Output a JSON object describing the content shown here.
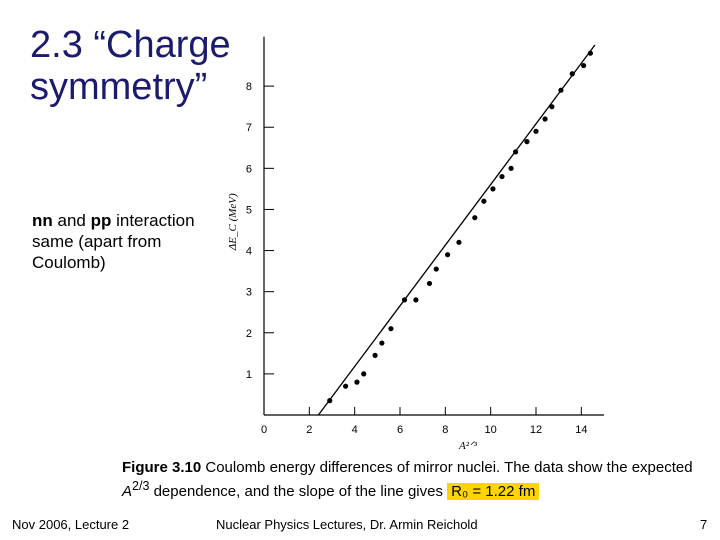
{
  "slide": {
    "title_line1": "2.3 “Charge",
    "title_line2": "symmetry”",
    "bullet_bold1": "nn",
    "bullet_and": " and ",
    "bullet_bold2": "pp",
    "bullet_rest": " interaction same (apart from Coulomb)"
  },
  "caption": {
    "fig_label": "Figure 3.10",
    "text1": " Coulomb energy differences of mirror nuclei. The data show the expected ",
    "a_exp": "A",
    "exp": "2/3",
    "text2": " dependence, and the slope of the line gives ",
    "highlight": "R₀ = 1.22 fm"
  },
  "footer": {
    "left": "Nov 2006, Lecture 2",
    "center": "Nuclear Physics Lectures, Dr. Armin Reichold",
    "page": "7"
  },
  "chart_data": {
    "type": "scatter",
    "xlabel": "A²ᐟ³",
    "ylabel": "ΔE_C (MeV)",
    "xlim": [
      0,
      15
    ],
    "ylim": [
      0,
      9
    ],
    "xticks": [
      0,
      2,
      4,
      6,
      8,
      10,
      12,
      14
    ],
    "yticks": [
      1,
      2,
      3,
      4,
      5,
      6,
      7,
      8
    ],
    "points": [
      [
        2.9,
        0.35
      ],
      [
        3.6,
        0.7
      ],
      [
        4.1,
        0.8
      ],
      [
        4.4,
        1.0
      ],
      [
        4.9,
        1.45
      ],
      [
        5.2,
        1.75
      ],
      [
        5.6,
        2.1
      ],
      [
        6.2,
        2.8
      ],
      [
        6.7,
        2.8
      ],
      [
        7.3,
        3.2
      ],
      [
        7.6,
        3.55
      ],
      [
        8.1,
        3.9
      ],
      [
        8.6,
        4.2
      ],
      [
        9.3,
        4.8
      ],
      [
        9.7,
        5.2
      ],
      [
        10.1,
        5.5
      ],
      [
        10.5,
        5.8
      ],
      [
        10.9,
        6.0
      ],
      [
        11.1,
        6.4
      ],
      [
        11.6,
        6.65
      ],
      [
        12.0,
        6.9
      ],
      [
        12.4,
        7.2
      ],
      [
        12.7,
        7.5
      ],
      [
        13.1,
        7.9
      ],
      [
        13.6,
        8.3
      ],
      [
        14.1,
        8.5
      ],
      [
        14.4,
        8.8
      ]
    ],
    "fit_line": [
      [
        2.4,
        0.0
      ],
      [
        14.6,
        9.0
      ]
    ],
    "grid": false,
    "legend": "none"
  }
}
